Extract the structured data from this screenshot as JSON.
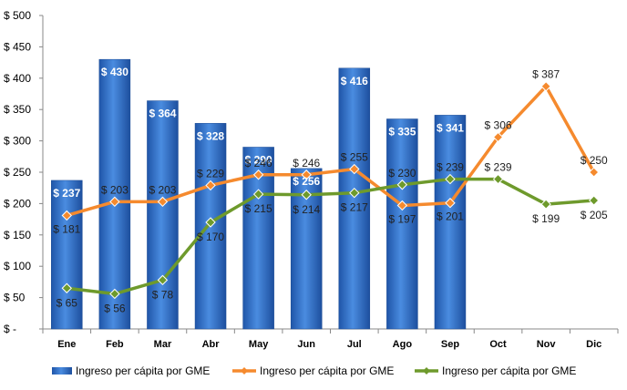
{
  "chart_data": {
    "type": "bar+line",
    "categories": [
      "Ene",
      "Feb",
      "Mar",
      "Abr",
      "May",
      "Jun",
      "Jul",
      "Ago",
      "Sep",
      "Oct",
      "Nov",
      "Dic"
    ],
    "y_ticks": [
      "$ -",
      "$ 50",
      "$ 100",
      "$ 150",
      "$ 200",
      "$ 250",
      "$ 300",
      "$ 350",
      "$ 400",
      "$ 450",
      "$ 500"
    ],
    "ylim": [
      0,
      500
    ],
    "grid": false,
    "legend_position": "bottom",
    "series": [
      {
        "name": "Ingreso per cápita por GME",
        "kind": "bar",
        "color": "#2e6fc8",
        "values": [
          237,
          430,
          364,
          328,
          290,
          256,
          416,
          335,
          341,
          null,
          null,
          null
        ],
        "labels": [
          "$ 237",
          "$ 430",
          "$ 364",
          "$ 328",
          "$ 290",
          "$ 256",
          "$ 416",
          "$ 335",
          "$ 341",
          "",
          "",
          ""
        ]
      },
      {
        "name": "Ingreso per cápita por GME",
        "kind": "line",
        "color": "#f58a2e",
        "values": [
          181,
          203,
          203,
          229,
          246,
          246,
          255,
          197,
          201,
          306,
          387,
          250
        ],
        "labels": [
          "$ 181",
          "$ 203",
          "$ 203",
          "$ 229",
          "$ 246",
          "$ 246",
          "$ 255",
          "$ 197",
          "$ 201",
          "$ 306",
          "$ 387",
          "$ 250"
        ]
      },
      {
        "name": "Ingreso per cápita por GME",
        "kind": "line",
        "color": "#6e9a2c",
        "values": [
          65,
          56,
          78,
          170,
          215,
          214,
          217,
          230,
          239,
          239,
          199,
          205
        ],
        "labels": [
          "$ 65",
          "$ 56",
          "$ 78",
          "$ 170",
          "$ 215",
          "$ 214",
          "$ 217",
          "$ 230",
          "$ 239",
          "$ 239",
          "$ 199",
          "$ 205"
        ]
      }
    ]
  }
}
